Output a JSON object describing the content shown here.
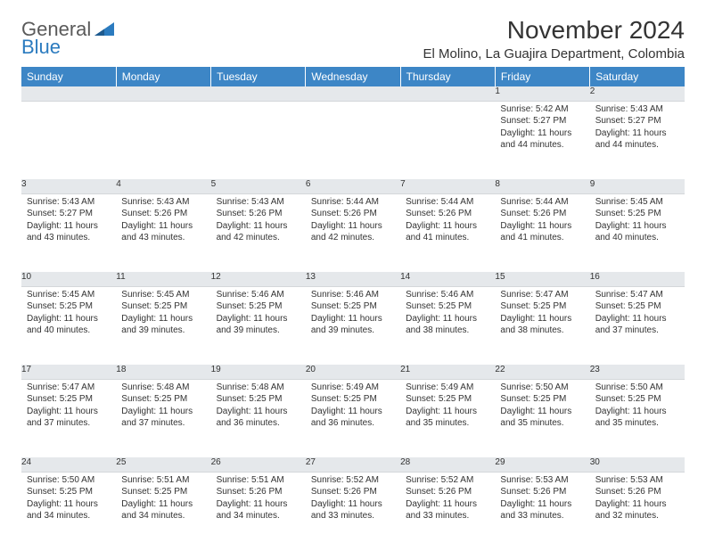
{
  "logo": {
    "line1": "General",
    "line2": "Blue"
  },
  "title": "November 2024",
  "location": "El Molino, La Guajira Department, Colombia",
  "colors": {
    "header_bg": "#3d86c6",
    "header_text": "#ffffff",
    "daynum_bg": "#e5e8eb",
    "text": "#333333",
    "logo_gray": "#5a5a5a",
    "logo_blue": "#2b7bbf"
  },
  "weekdays": [
    "Sunday",
    "Monday",
    "Tuesday",
    "Wednesday",
    "Thursday",
    "Friday",
    "Saturday"
  ],
  "weeks": [
    [
      null,
      null,
      null,
      null,
      null,
      {
        "n": "1",
        "sunrise": "Sunrise: 5:42 AM",
        "sunset": "Sunset: 5:27 PM",
        "day1": "Daylight: 11 hours",
        "day2": "and 44 minutes."
      },
      {
        "n": "2",
        "sunrise": "Sunrise: 5:43 AM",
        "sunset": "Sunset: 5:27 PM",
        "day1": "Daylight: 11 hours",
        "day2": "and 44 minutes."
      }
    ],
    [
      {
        "n": "3",
        "sunrise": "Sunrise: 5:43 AM",
        "sunset": "Sunset: 5:27 PM",
        "day1": "Daylight: 11 hours",
        "day2": "and 43 minutes."
      },
      {
        "n": "4",
        "sunrise": "Sunrise: 5:43 AM",
        "sunset": "Sunset: 5:26 PM",
        "day1": "Daylight: 11 hours",
        "day2": "and 43 minutes."
      },
      {
        "n": "5",
        "sunrise": "Sunrise: 5:43 AM",
        "sunset": "Sunset: 5:26 PM",
        "day1": "Daylight: 11 hours",
        "day2": "and 42 minutes."
      },
      {
        "n": "6",
        "sunrise": "Sunrise: 5:44 AM",
        "sunset": "Sunset: 5:26 PM",
        "day1": "Daylight: 11 hours",
        "day2": "and 42 minutes."
      },
      {
        "n": "7",
        "sunrise": "Sunrise: 5:44 AM",
        "sunset": "Sunset: 5:26 PM",
        "day1": "Daylight: 11 hours",
        "day2": "and 41 minutes."
      },
      {
        "n": "8",
        "sunrise": "Sunrise: 5:44 AM",
        "sunset": "Sunset: 5:26 PM",
        "day1": "Daylight: 11 hours",
        "day2": "and 41 minutes."
      },
      {
        "n": "9",
        "sunrise": "Sunrise: 5:45 AM",
        "sunset": "Sunset: 5:25 PM",
        "day1": "Daylight: 11 hours",
        "day2": "and 40 minutes."
      }
    ],
    [
      {
        "n": "10",
        "sunrise": "Sunrise: 5:45 AM",
        "sunset": "Sunset: 5:25 PM",
        "day1": "Daylight: 11 hours",
        "day2": "and 40 minutes."
      },
      {
        "n": "11",
        "sunrise": "Sunrise: 5:45 AM",
        "sunset": "Sunset: 5:25 PM",
        "day1": "Daylight: 11 hours",
        "day2": "and 39 minutes."
      },
      {
        "n": "12",
        "sunrise": "Sunrise: 5:46 AM",
        "sunset": "Sunset: 5:25 PM",
        "day1": "Daylight: 11 hours",
        "day2": "and 39 minutes."
      },
      {
        "n": "13",
        "sunrise": "Sunrise: 5:46 AM",
        "sunset": "Sunset: 5:25 PM",
        "day1": "Daylight: 11 hours",
        "day2": "and 39 minutes."
      },
      {
        "n": "14",
        "sunrise": "Sunrise: 5:46 AM",
        "sunset": "Sunset: 5:25 PM",
        "day1": "Daylight: 11 hours",
        "day2": "and 38 minutes."
      },
      {
        "n": "15",
        "sunrise": "Sunrise: 5:47 AM",
        "sunset": "Sunset: 5:25 PM",
        "day1": "Daylight: 11 hours",
        "day2": "and 38 minutes."
      },
      {
        "n": "16",
        "sunrise": "Sunrise: 5:47 AM",
        "sunset": "Sunset: 5:25 PM",
        "day1": "Daylight: 11 hours",
        "day2": "and 37 minutes."
      }
    ],
    [
      {
        "n": "17",
        "sunrise": "Sunrise: 5:47 AM",
        "sunset": "Sunset: 5:25 PM",
        "day1": "Daylight: 11 hours",
        "day2": "and 37 minutes."
      },
      {
        "n": "18",
        "sunrise": "Sunrise: 5:48 AM",
        "sunset": "Sunset: 5:25 PM",
        "day1": "Daylight: 11 hours",
        "day2": "and 37 minutes."
      },
      {
        "n": "19",
        "sunrise": "Sunrise: 5:48 AM",
        "sunset": "Sunset: 5:25 PM",
        "day1": "Daylight: 11 hours",
        "day2": "and 36 minutes."
      },
      {
        "n": "20",
        "sunrise": "Sunrise: 5:49 AM",
        "sunset": "Sunset: 5:25 PM",
        "day1": "Daylight: 11 hours",
        "day2": "and 36 minutes."
      },
      {
        "n": "21",
        "sunrise": "Sunrise: 5:49 AM",
        "sunset": "Sunset: 5:25 PM",
        "day1": "Daylight: 11 hours",
        "day2": "and 35 minutes."
      },
      {
        "n": "22",
        "sunrise": "Sunrise: 5:50 AM",
        "sunset": "Sunset: 5:25 PM",
        "day1": "Daylight: 11 hours",
        "day2": "and 35 minutes."
      },
      {
        "n": "23",
        "sunrise": "Sunrise: 5:50 AM",
        "sunset": "Sunset: 5:25 PM",
        "day1": "Daylight: 11 hours",
        "day2": "and 35 minutes."
      }
    ],
    [
      {
        "n": "24",
        "sunrise": "Sunrise: 5:50 AM",
        "sunset": "Sunset: 5:25 PM",
        "day1": "Daylight: 11 hours",
        "day2": "and 34 minutes."
      },
      {
        "n": "25",
        "sunrise": "Sunrise: 5:51 AM",
        "sunset": "Sunset: 5:25 PM",
        "day1": "Daylight: 11 hours",
        "day2": "and 34 minutes."
      },
      {
        "n": "26",
        "sunrise": "Sunrise: 5:51 AM",
        "sunset": "Sunset: 5:26 PM",
        "day1": "Daylight: 11 hours",
        "day2": "and 34 minutes."
      },
      {
        "n": "27",
        "sunrise": "Sunrise: 5:52 AM",
        "sunset": "Sunset: 5:26 PM",
        "day1": "Daylight: 11 hours",
        "day2": "and 33 minutes."
      },
      {
        "n": "28",
        "sunrise": "Sunrise: 5:52 AM",
        "sunset": "Sunset: 5:26 PM",
        "day1": "Daylight: 11 hours",
        "day2": "and 33 minutes."
      },
      {
        "n": "29",
        "sunrise": "Sunrise: 5:53 AM",
        "sunset": "Sunset: 5:26 PM",
        "day1": "Daylight: 11 hours",
        "day2": "and 33 minutes."
      },
      {
        "n": "30",
        "sunrise": "Sunrise: 5:53 AM",
        "sunset": "Sunset: 5:26 PM",
        "day1": "Daylight: 11 hours",
        "day2": "and 32 minutes."
      }
    ]
  ]
}
